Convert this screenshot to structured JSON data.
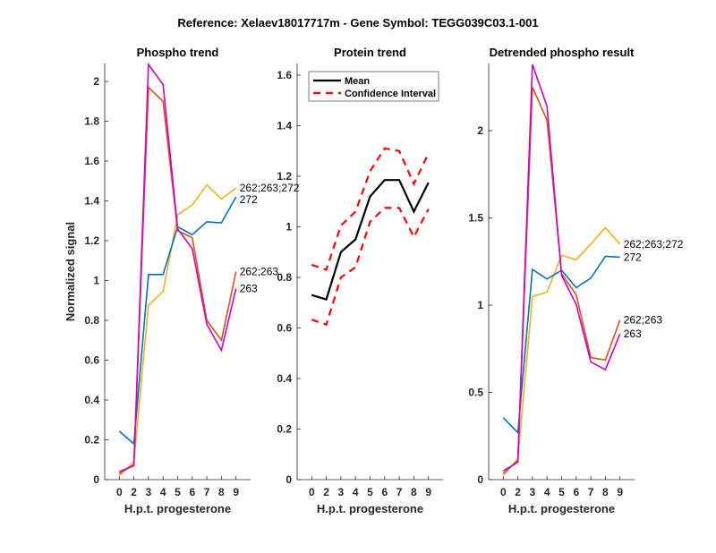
{
  "figure_title": "Reference:  Xelaev18017717m - Gene Symbol:  TEGG039C03.1-001",
  "chart_data": [
    {
      "type": "line",
      "title": "Phospho trend",
      "xlabel": "H.p.t. progesterone",
      "ylabel": "Normalized signal",
      "categories": [
        "0",
        "2",
        "3",
        "4",
        "5",
        "6",
        "7",
        "8",
        "9"
      ],
      "ylim": [
        0,
        2.09
      ],
      "yticks": [
        "0",
        "0.2",
        "0.4",
        "0.6",
        "0.8",
        "1",
        "1.2",
        "1.4",
        "1.6",
        "1.8",
        "2"
      ],
      "ytick_values": [
        0,
        0.2,
        0.4,
        0.6,
        0.8,
        1,
        1.2,
        1.4,
        1.6,
        1.8,
        2
      ],
      "grid": false,
      "series": [
        {
          "name": "262;263;272",
          "color": "#EDB120",
          "values": [
            0.02,
            0.09,
            0.875,
            0.945,
            1.33,
            1.38,
            1.48,
            1.41,
            1.465
          ]
        },
        {
          "name": "272",
          "color": "#0072BD",
          "values": [
            0.243,
            0.18,
            1.03,
            1.03,
            1.27,
            1.23,
            1.295,
            1.29,
            1.42
          ]
        },
        {
          "name": "262;263",
          "color": "#D95319",
          "values": [
            0.03,
            0.075,
            1.97,
            1.9,
            1.25,
            1.215,
            0.8,
            0.7,
            1.045
          ]
        },
        {
          "name": "263",
          "color": "#CC00CC",
          "values": [
            0.04,
            0.07,
            2.085,
            1.985,
            1.26,
            1.16,
            0.78,
            0.65,
            0.96
          ]
        }
      ]
    },
    {
      "type": "line",
      "title": "Protein trend",
      "xlabel": "H.p.t. progesterone",
      "ylabel": "",
      "categories": [
        "0",
        "2",
        "3",
        "4",
        "5",
        "6",
        "7",
        "8",
        "9"
      ],
      "ylim": [
        0,
        1.646
      ],
      "yticks": [
        "0",
        "0.2",
        "0.4",
        "0.6",
        "0.8",
        "1",
        "1.2",
        "1.4",
        "1.6"
      ],
      "ytick_values": [
        0,
        0.2,
        0.4,
        0.6,
        0.8,
        1,
        1.2,
        1.4,
        1.6
      ],
      "grid": false,
      "legend": {
        "position": "top-left",
        "entries": [
          "Mean",
          "Confidence Interval"
        ]
      },
      "series": [
        {
          "name": "Mean",
          "color": "#000000",
          "style": "solid",
          "values": [
            0.73,
            0.713,
            0.9,
            0.95,
            1.12,
            1.185,
            1.185,
            1.06,
            1.175
          ]
        },
        {
          "name": "Confidence Interval (upper)",
          "color": "#FF0000",
          "style": "dashed",
          "values": [
            0.85,
            0.83,
            1.005,
            1.06,
            1.22,
            1.31,
            1.3,
            1.17,
            1.29
          ]
        },
        {
          "name": "Confidence Interval (lower)",
          "color": "#FF0000",
          "style": "dashed",
          "values": [
            0.633,
            0.613,
            0.8,
            0.84,
            1.02,
            1.075,
            1.075,
            0.96,
            1.07
          ]
        }
      ]
    },
    {
      "type": "line",
      "title": "Detrended phospho result",
      "xlabel": "H.p.t. progesterone",
      "ylabel": "",
      "categories": [
        "0",
        "2",
        "3",
        "4",
        "5",
        "6",
        "7",
        "8",
        "9"
      ],
      "ylim": [
        0,
        2.385
      ],
      "yticks": [
        "0",
        "0.5",
        "1",
        "1.5",
        "2"
      ],
      "ytick_values": [
        0,
        0.5,
        1,
        1.5,
        2
      ],
      "grid": false,
      "series": [
        {
          "name": "262;263;272",
          "color": "#EDB120",
          "values": [
            0.025,
            0.12,
            1.05,
            1.075,
            1.285,
            1.26,
            1.35,
            1.445,
            1.35
          ]
        },
        {
          "name": "272",
          "color": "#0072BD",
          "values": [
            0.355,
            0.27,
            1.205,
            1.15,
            1.2,
            1.1,
            1.155,
            1.28,
            1.275
          ]
        },
        {
          "name": "262;263",
          "color": "#D95319",
          "values": [
            0.035,
            0.11,
            2.25,
            2.06,
            1.18,
            1.06,
            0.7,
            0.685,
            0.915
          ]
        },
        {
          "name": "263",
          "color": "#CC00CC",
          "values": [
            0.05,
            0.1,
            2.38,
            2.14,
            1.17,
            1.005,
            0.675,
            0.63,
            0.835
          ]
        }
      ]
    }
  ]
}
